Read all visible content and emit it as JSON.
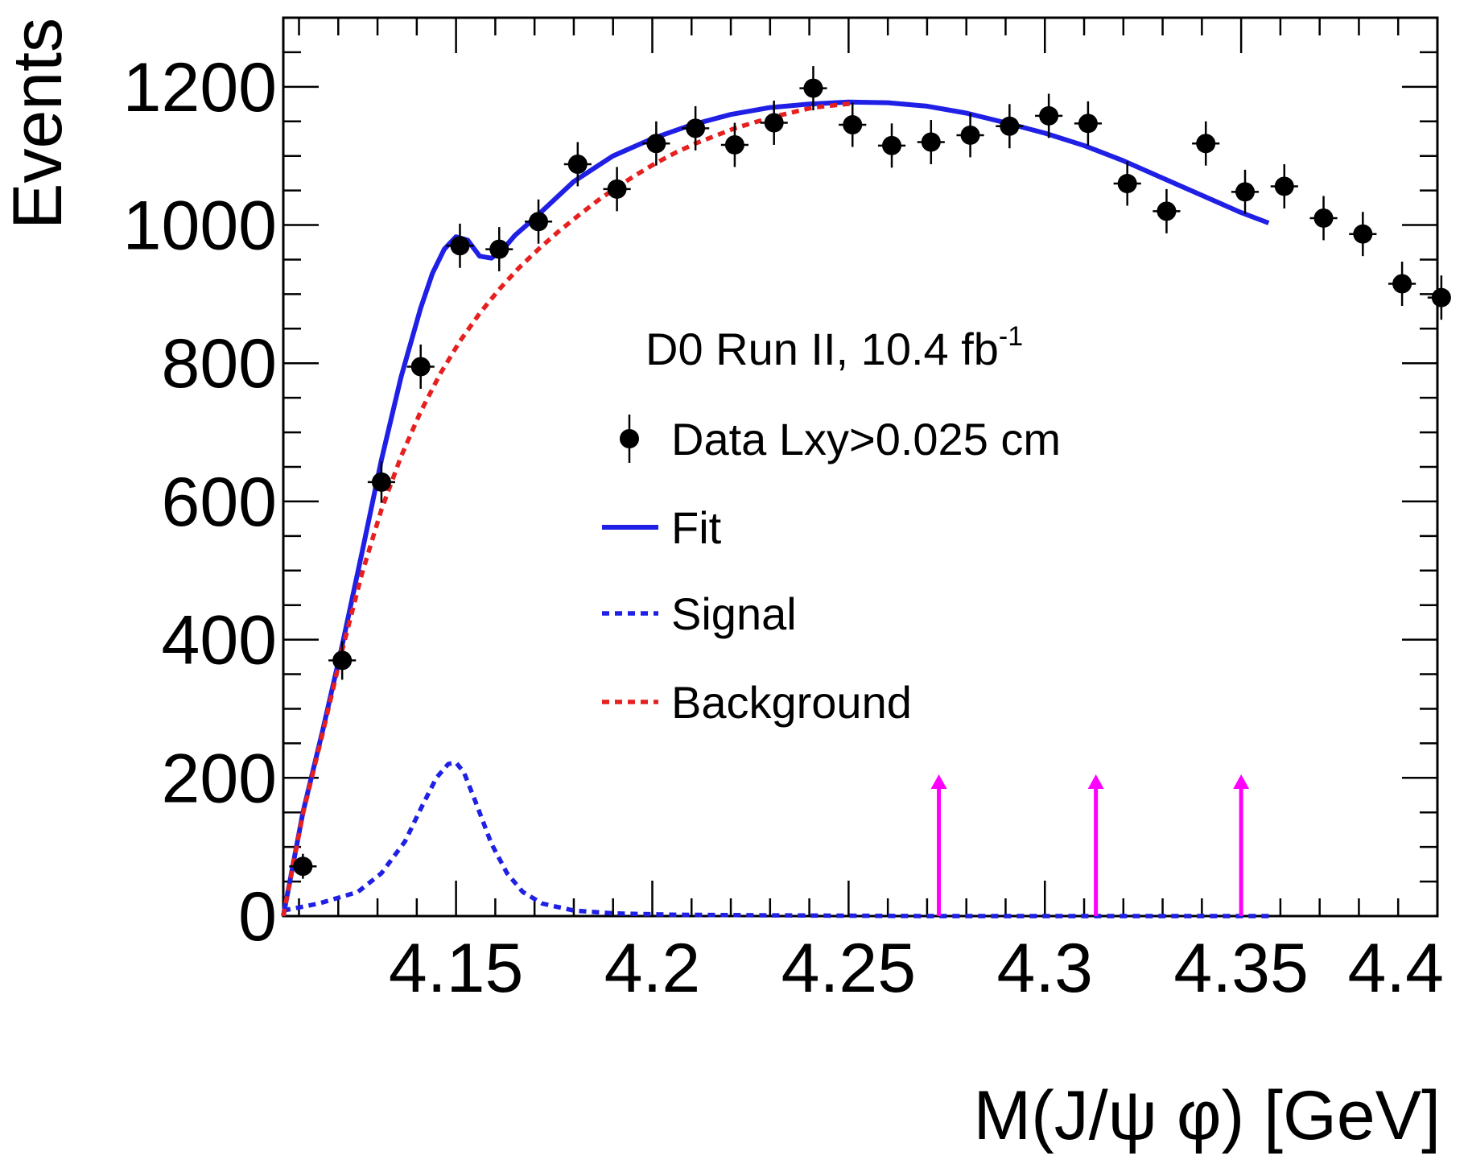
{
  "chart_data": {
    "type": "scatter",
    "title": "D0 Run II, 10.4 fb",
    "title_superscript": "-1",
    "xlabel": "M(J/ψ φ) [GeV]",
    "ylabel": "Events",
    "xlim": [
      4.106,
      4.4
    ],
    "ylim": [
      0,
      1300
    ],
    "x_ticks": [
      4.15,
      4.2,
      4.25,
      4.3,
      4.35,
      4.4
    ],
    "x_tick_labels": [
      "4.15",
      "4.2",
      "4.25",
      "4.3",
      "4.35",
      "4.4"
    ],
    "y_ticks": [
      0,
      200,
      400,
      600,
      800,
      1000,
      1200
    ],
    "y_tick_labels": [
      "0",
      "200",
      "400",
      "600",
      "800",
      "1000",
      "1200"
    ],
    "bin_half_width": 0.0035,
    "series": [
      {
        "name": "Data Lxy>0.025 cm",
        "kind": "points",
        "color": "#000000",
        "x": [
          4.111,
          4.121,
          4.131,
          4.141,
          4.151,
          4.161,
          4.171,
          4.181,
          4.191,
          4.201,
          4.211,
          4.221,
          4.231,
          4.241,
          4.251,
          4.261,
          4.271,
          4.281,
          4.291,
          4.301,
          4.311,
          4.321,
          4.331,
          4.341,
          4.351,
          4.361,
          4.371,
          4.381,
          4.391,
          4.401
        ],
        "y": [
          72,
          370,
          628,
          795,
          970,
          965,
          1005,
          1088,
          1052,
          1118,
          1140,
          1116,
          1148,
          1198,
          1145,
          1115,
          1120,
          1130,
          1143,
          1158,
          1147,
          1060,
          1020,
          1118,
          1048,
          1056,
          1010,
          987,
          915,
          895
        ],
        "yerr": [
          18,
          28,
          30,
          32,
          32,
          32,
          32,
          32,
          32,
          32,
          32,
          32,
          32,
          32,
          32,
          32,
          32,
          32,
          32,
          32,
          32,
          32,
          32,
          32,
          32,
          32,
          32,
          32,
          32,
          32
        ]
      },
      {
        "name": "Fit",
        "kind": "line",
        "style": "solid",
        "color": "#1f1fe6",
        "x": [
          4.106,
          4.111,
          4.116,
          4.121,
          4.126,
          4.131,
          4.136,
          4.141,
          4.144,
          4.147,
          4.15,
          4.153,
          4.156,
          4.159,
          4.162,
          4.165,
          4.17,
          4.18,
          4.19,
          4.2,
          4.21,
          4.22,
          4.23,
          4.24,
          4.25,
          4.26,
          4.27,
          4.28,
          4.29,
          4.3,
          4.31,
          4.32,
          4.33,
          4.34,
          4.35,
          4.357
        ],
        "y": [
          0,
          150,
          268,
          392,
          525,
          660,
          780,
          880,
          930,
          965,
          983,
          978,
          955,
          952,
          965,
          985,
          1010,
          1063,
          1100,
          1125,
          1145,
          1160,
          1170,
          1175,
          1178,
          1177,
          1172,
          1162,
          1148,
          1133,
          1115,
          1093,
          1068,
          1043,
          1018,
          1003
        ]
      },
      {
        "name": "Signal",
        "kind": "line",
        "style": "dotted",
        "color": "#1f1fe6",
        "x": [
          4.106,
          4.115,
          4.125,
          4.131,
          4.137,
          4.141,
          4.145,
          4.148,
          4.15,
          4.152,
          4.155,
          4.159,
          4.163,
          4.167,
          4.172,
          4.18,
          4.19,
          4.205,
          4.23,
          4.27,
          4.357
        ],
        "y": [
          8,
          18,
          35,
          62,
          108,
          155,
          200,
          220,
          222,
          208,
          165,
          105,
          62,
          35,
          18,
          8,
          4,
          2,
          1,
          0,
          0
        ]
      },
      {
        "name": "Background",
        "kind": "line",
        "style": "dotted",
        "color": "#e61f1f",
        "x": [
          4.106,
          4.111,
          4.116,
          4.121,
          4.126,
          4.131,
          4.136,
          4.141,
          4.146,
          4.151,
          4.156,
          4.161,
          4.166,
          4.171,
          4.176,
          4.181,
          4.186,
          4.191,
          4.196,
          4.201,
          4.206,
          4.211,
          4.221,
          4.231,
          4.241,
          4.251
        ],
        "y": [
          0,
          148,
          264,
          385,
          495,
          588,
          665,
          730,
          785,
          832,
          872,
          907,
          938,
          965,
          990,
          1013,
          1035,
          1055,
          1073,
          1090,
          1105,
          1118,
          1140,
          1157,
          1170,
          1176
        ]
      }
    ],
    "arrows": {
      "color": "#ff00ff",
      "x": [
        4.273,
        4.313,
        4.35
      ],
      "from_y": 0,
      "to_y": 205
    },
    "legend": {
      "placement": "center-right",
      "entries": [
        "Data Lxy>0.025 cm",
        "Fit",
        "Signal",
        "Background"
      ]
    }
  }
}
